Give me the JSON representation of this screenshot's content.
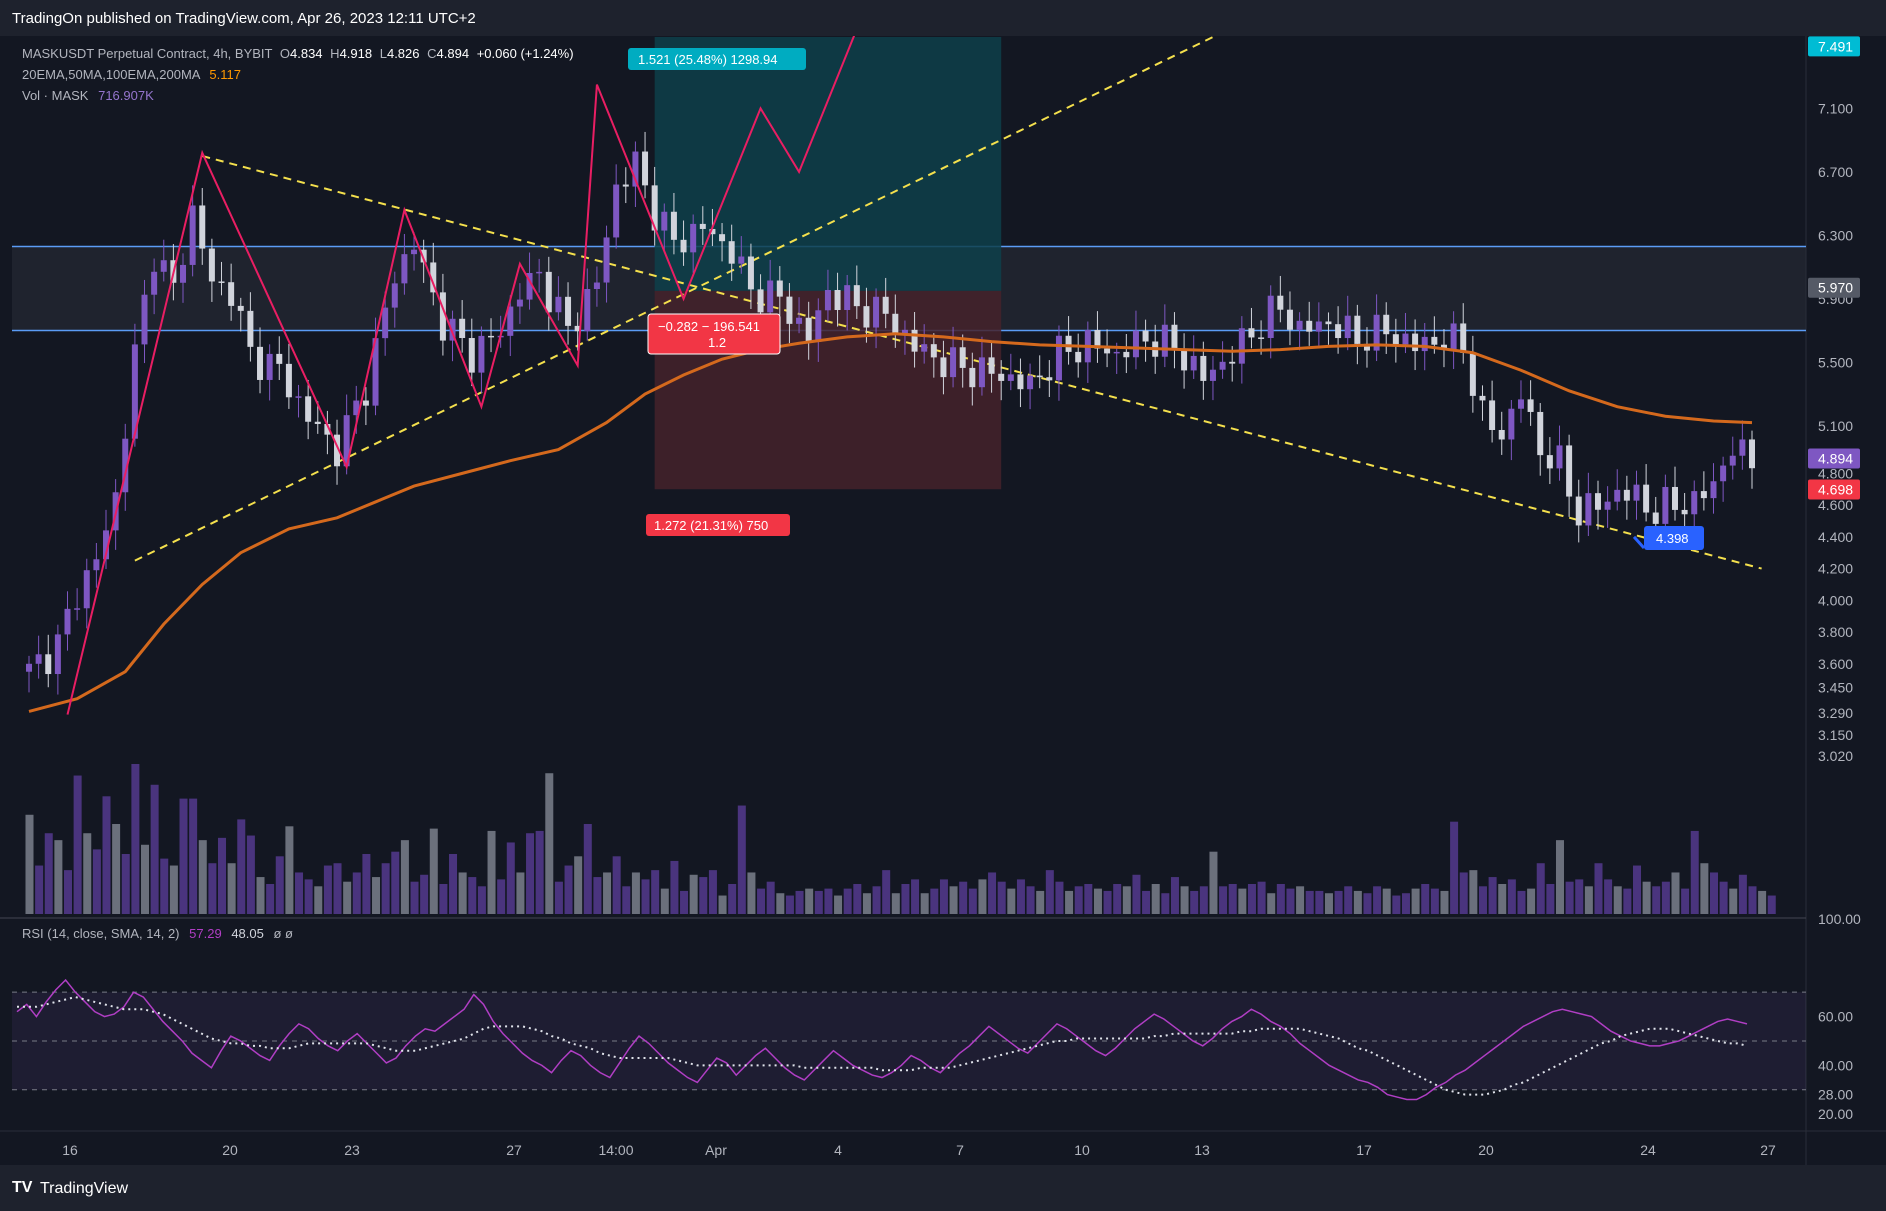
{
  "header": {
    "published": "TradingOn published on TradingView.com, Apr 26, 2023 12:11 UTC+2"
  },
  "footer": {
    "brand": "TradingView",
    "logo": "tradingview-logo-icon"
  },
  "legend": {
    "symbol": "MASKUSDT Perpetual Contract, 4h, BYBIT",
    "o_label": "O",
    "o": "4.834",
    "h_label": "H",
    "h": "4.918",
    "l_label": "L",
    "l": "4.826",
    "c_label": "C",
    "c": "4.894",
    "change": "+0.060 (+1.24%)",
    "ma_label": "20EMA,50MA,100EMA,200MA",
    "ma_value": "5.117",
    "vol_label": "Vol · MASK",
    "vol_value": "716.907K",
    "rsi_label": "RSI (14, close, SMA, 14, 2)",
    "rsi_value": "57.29",
    "rsi_ma": "48.05",
    "rsi_extra": "ø ø"
  },
  "colors": {
    "background": "#131722",
    "up": "#7e57c2",
    "down": "#d1d4dc",
    "ema": "#d4691d",
    "rsi": "#b03ec4",
    "zigzag": "#e91e63",
    "trend": "#f4e04d",
    "zone": "#5b9cf6",
    "target": "#0e3f4a",
    "stop": "#45222a"
  },
  "chart_data": [
    {
      "type": "candlestick",
      "title": "MASKUSDT Perpetual Contract, 4h, BYBIT",
      "price_scale": [
        "7.100",
        "6.700",
        "6.300",
        "5.900",
        "5.500",
        "5.100",
        "4.800",
        "4.600",
        "4.400",
        "4.200",
        "4.000",
        "3.800",
        "3.600",
        "3.450",
        "3.290",
        "3.150",
        "3.020"
      ],
      "x_ticks": [
        "16",
        "20",
        "23",
        "27",
        "14:00",
        "Apr",
        "4",
        "7",
        "10",
        "13",
        "17",
        "20",
        "24",
        "27"
      ],
      "ylim": [
        3.0,
        7.55
      ],
      "close_path": [
        {
          "x": 0,
          "y": 3.55
        },
        {
          "x": 3,
          "y": 3.72
        },
        {
          "x": 5,
          "y": 4.05
        },
        {
          "x": 7,
          "y": 4.25
        },
        {
          "x": 9,
          "y": 4.65
        },
        {
          "x": 11,
          "y": 5.55
        },
        {
          "x": 13,
          "y": 6.2
        },
        {
          "x": 15,
          "y": 5.95
        },
        {
          "x": 17,
          "y": 6.45
        },
        {
          "x": 19,
          "y": 6.0
        },
        {
          "x": 21,
          "y": 5.95
        },
        {
          "x": 23,
          "y": 5.55
        },
        {
          "x": 26,
          "y": 5.45
        },
        {
          "x": 29,
          "y": 5.15
        },
        {
          "x": 32,
          "y": 4.95
        },
        {
          "x": 35,
          "y": 5.35
        },
        {
          "x": 38,
          "y": 6.05
        },
        {
          "x": 40,
          "y": 6.25
        },
        {
          "x": 43,
          "y": 5.75
        },
        {
          "x": 46,
          "y": 5.55
        },
        {
          "x": 49,
          "y": 5.7
        },
        {
          "x": 51,
          "y": 5.95
        },
        {
          "x": 53,
          "y": 6.05
        },
        {
          "x": 56,
          "y": 5.7
        },
        {
          "x": 59,
          "y": 6.0
        },
        {
          "x": 61,
          "y": 6.6
        },
        {
          "x": 63,
          "y": 6.75
        },
        {
          "x": 65,
          "y": 6.45
        },
        {
          "x": 67,
          "y": 6.25
        },
        {
          "x": 70,
          "y": 6.35
        },
        {
          "x": 73,
          "y": 6.2
        },
        {
          "x": 75,
          "y": 5.95
        },
        {
          "x": 78,
          "y": 5.9
        },
        {
          "x": 81,
          "y": 5.65
        },
        {
          "x": 83,
          "y": 5.95
        },
        {
          "x": 86,
          "y": 5.85
        },
        {
          "x": 89,
          "y": 5.8
        },
        {
          "x": 92,
          "y": 5.6
        },
        {
          "x": 95,
          "y": 5.5
        },
        {
          "x": 98,
          "y": 5.45
        },
        {
          "x": 101,
          "y": 5.42
        },
        {
          "x": 104,
          "y": 5.35
        },
        {
          "x": 107,
          "y": 5.55
        },
        {
          "x": 110,
          "y": 5.62
        },
        {
          "x": 113,
          "y": 5.55
        },
        {
          "x": 116,
          "y": 5.65
        },
        {
          "x": 119,
          "y": 5.6
        },
        {
          "x": 122,
          "y": 5.4
        },
        {
          "x": 125,
          "y": 5.55
        },
        {
          "x": 128,
          "y": 5.75
        },
        {
          "x": 130,
          "y": 5.85
        },
        {
          "x": 132,
          "y": 5.7
        },
        {
          "x": 135,
          "y": 5.75
        },
        {
          "x": 138,
          "y": 5.65
        },
        {
          "x": 141,
          "y": 5.7
        },
        {
          "x": 144,
          "y": 5.6
        },
        {
          "x": 147,
          "y": 5.65
        },
        {
          "x": 149,
          "y": 5.6
        },
        {
          "x": 151,
          "y": 5.15
        },
        {
          "x": 153,
          "y": 5.05
        },
        {
          "x": 155,
          "y": 5.3
        },
        {
          "x": 157,
          "y": 4.95
        },
        {
          "x": 159,
          "y": 4.85
        },
        {
          "x": 161,
          "y": 4.55
        },
        {
          "x": 163,
          "y": 4.6
        },
        {
          "x": 165,
          "y": 4.68
        },
        {
          "x": 167,
          "y": 4.65
        },
        {
          "x": 169,
          "y": 4.55
        },
        {
          "x": 171,
          "y": 4.62
        },
        {
          "x": 173,
          "y": 4.6
        },
        {
          "x": 175,
          "y": 4.75
        },
        {
          "x": 177,
          "y": 4.95
        },
        {
          "x": 179,
          "y": 4.89
        }
      ],
      "ema_path": [
        {
          "x": 0,
          "y": 3.3
        },
        {
          "x": 5,
          "y": 3.38
        },
        {
          "x": 10,
          "y": 3.55
        },
        {
          "x": 14,
          "y": 3.85
        },
        {
          "x": 18,
          "y": 4.1
        },
        {
          "x": 22,
          "y": 4.3
        },
        {
          "x": 27,
          "y": 4.45
        },
        {
          "x": 32,
          "y": 4.52
        },
        {
          "x": 36,
          "y": 4.62
        },
        {
          "x": 40,
          "y": 4.72
        },
        {
          "x": 45,
          "y": 4.8
        },
        {
          "x": 50,
          "y": 4.88
        },
        {
          "x": 55,
          "y": 4.95
        },
        {
          "x": 60,
          "y": 5.12
        },
        {
          "x": 64,
          "y": 5.3
        },
        {
          "x": 68,
          "y": 5.42
        },
        {
          "x": 72,
          "y": 5.52
        },
        {
          "x": 76,
          "y": 5.58
        },
        {
          "x": 80,
          "y": 5.62
        },
        {
          "x": 85,
          "y": 5.66
        },
        {
          "x": 90,
          "y": 5.68
        },
        {
          "x": 95,
          "y": 5.66
        },
        {
          "x": 100,
          "y": 5.63
        },
        {
          "x": 105,
          "y": 5.61
        },
        {
          "x": 110,
          "y": 5.6
        },
        {
          "x": 115,
          "y": 5.59
        },
        {
          "x": 120,
          "y": 5.58
        },
        {
          "x": 125,
          "y": 5.57
        },
        {
          "x": 130,
          "y": 5.58
        },
        {
          "x": 135,
          "y": 5.6
        },
        {
          "x": 140,
          "y": 5.61
        },
        {
          "x": 145,
          "y": 5.6
        },
        {
          "x": 150,
          "y": 5.56
        },
        {
          "x": 155,
          "y": 5.45
        },
        {
          "x": 160,
          "y": 5.32
        },
        {
          "x": 165,
          "y": 5.22
        },
        {
          "x": 170,
          "y": 5.16
        },
        {
          "x": 175,
          "y": 5.13
        },
        {
          "x": 179,
          "y": 5.12
        }
      ],
      "zigzag": [
        {
          "x": 4,
          "y": 3.28
        },
        {
          "x": 18,
          "y": 6.82
        },
        {
          "x": 33,
          "y": 4.84
        },
        {
          "x": 39,
          "y": 6.46
        },
        {
          "x": 47,
          "y": 5.22
        },
        {
          "x": 51,
          "y": 6.12
        },
        {
          "x": 57,
          "y": 5.48
        },
        {
          "x": 59,
          "y": 7.25
        },
        {
          "x": 68,
          "y": 5.9
        },
        {
          "x": 76,
          "y": 7.1
        },
        {
          "x": 80,
          "y": 6.7
        },
        {
          "x": 86,
          "y": 7.6
        }
      ],
      "trendlines": [
        {
          "from": {
            "x": 11,
            "y": 4.25
          },
          "to": {
            "x": 123,
            "y": 7.55
          }
        },
        {
          "from": {
            "x": 18,
            "y": 6.8
          },
          "to": {
            "x": 180,
            "y": 4.2
          }
        }
      ],
      "zone": {
        "low": 5.7,
        "high": 6.23
      },
      "position": {
        "x0": 65,
        "x1": 101,
        "target": 7.55,
        "entry": 5.95,
        "stop": 4.7,
        "target_label": "1.521 (25.48%) 1298.94",
        "stop_label": "1.272 (21.31%) 750",
        "center_label_line1": "−0.282 − 196.541",
        "center_label_line2": "1.2"
      },
      "price_badges": [
        {
          "value": "7.491",
          "color": "#00bcd4"
        },
        {
          "value": "5.970",
          "color": "#555a66"
        },
        {
          "value": "4.894",
          "color": "#7e57c2"
        },
        {
          "value": "4.698",
          "color": "#f23645"
        }
      ],
      "note": {
        "label": "4.398",
        "x": 163,
        "y": 4.4
      }
    },
    {
      "type": "bar",
      "series": [
        {
          "name": "Vol · MASK",
          "values": [
            4.3,
            2.1,
            3.5,
            3.2,
            1.9,
            6.0,
            3.5,
            2.8,
            5.1,
            3.9,
            2.6,
            6.5,
            3.0,
            5.6,
            2.4,
            2.1,
            5.0,
            5.0,
            3.2,
            2.2,
            3.3,
            2.2,
            4.1,
            3.4,
            1.6,
            1.3,
            2.5,
            3.8,
            1.8,
            1.5,
            1.2,
            2.1,
            2.2,
            1.4,
            1.8,
            2.6,
            1.6,
            2.2,
            2.7,
            3.2,
            1.4,
            1.7,
            3.7,
            1.3,
            2.6,
            1.8,
            1.6,
            1.2,
            3.6,
            1.5,
            3.1,
            1.8,
            3.5,
            3.6,
            6.1,
            1.4,
            2.1,
            2.5,
            3.9,
            1.6,
            1.8,
            2.5,
            1.2,
            1.8,
            1.5,
            1.9,
            1.1,
            2.3,
            1.0,
            1.7,
            1.6,
            1.9,
            0.8,
            1.3,
            4.7,
            1.8,
            1.1,
            1.4,
            0.9,
            0.8,
            1.0,
            1.1,
            1.0,
            1.1,
            0.8,
            1.1,
            1.3,
            0.9,
            1.2,
            1.9,
            0.9,
            1.3,
            1.5,
            0.9,
            1.1,
            1.5,
            1.2,
            1.4,
            1.1,
            1.5,
            1.8,
            1.4,
            1.1,
            1.5,
            1.2,
            1.0,
            1.9,
            1.4,
            1.0,
            1.2,
            1.3,
            1.1,
            1.0,
            1.3,
            1.2,
            1.7,
            1.0,
            1.3,
            0.9,
            1.6,
            1.2,
            1.0,
            1.2,
            2.7,
            1.2,
            1.3,
            1.1,
            1.3,
            1.4,
            0.9,
            1.3,
            1.1,
            1.2,
            1.0,
            1.0,
            0.9,
            1.0,
            1.2,
            1.0,
            0.9,
            1.2,
            1.1,
            0.8,
            0.9,
            1.1,
            1.3,
            1.1,
            1.0,
            4.0,
            1.8,
            1.9,
            1.2,
            1.6,
            1.3,
            1.5,
            1.0,
            1.1,
            2.2,
            1.3,
            3.2,
            1.4,
            1.5,
            1.2,
            2.2,
            1.5,
            1.2,
            1.1,
            2.1,
            1.4,
            1.2,
            1.4,
            1.8,
            1.1,
            3.6,
            2.2,
            1.8,
            1.4,
            1.1,
            1.7,
            1.2,
            1.0,
            0.8
          ]
        }
      ]
    },
    {
      "type": "line",
      "title": "RSI (14, close, SMA, 14, 2)",
      "y_ticks": [
        "100.00",
        "60.00",
        "40.00",
        "28.00",
        "20.00"
      ],
      "bands": [
        30,
        50,
        70
      ],
      "ylim": [
        18,
        100
      ],
      "rsi": [
        62,
        65,
        60,
        66,
        71,
        75,
        70,
        66,
        62,
        60,
        61,
        64,
        70,
        68,
        63,
        58,
        54,
        50,
        45,
        42,
        39,
        46,
        52,
        50,
        47,
        44,
        42,
        48,
        53,
        57,
        55,
        51,
        48,
        46,
        50,
        53,
        49,
        45,
        41,
        43,
        48,
        52,
        55,
        54,
        57,
        60,
        63,
        69,
        65,
        58,
        53,
        49,
        45,
        42,
        40,
        37,
        42,
        46,
        44,
        40,
        37,
        35,
        41,
        47,
        52,
        49,
        45,
        41,
        38,
        35,
        33,
        38,
        43,
        41,
        36,
        40,
        44,
        47,
        43,
        39,
        36,
        34,
        38,
        42,
        46,
        43,
        40,
        38,
        36,
        35,
        37,
        40,
        44,
        42,
        39,
        37,
        41,
        45,
        48,
        52,
        56,
        53,
        50,
        47,
        45,
        49,
        53,
        57,
        55,
        52,
        49,
        46,
        44,
        47,
        51,
        55,
        58,
        61,
        59,
        56,
        53,
        50,
        48,
        51,
        55,
        58,
        60,
        63,
        61,
        58,
        56,
        53,
        49,
        46,
        43,
        40,
        38,
        36,
        34,
        33,
        31,
        28,
        27,
        26,
        26,
        28,
        31,
        33,
        36,
        38,
        41,
        44,
        47,
        50,
        53,
        56,
        58,
        60,
        62,
        63,
        62,
        61,
        60,
        57,
        54,
        52,
        50,
        49,
        48,
        48,
        49,
        50,
        52,
        54,
        56,
        58,
        59,
        58,
        57
      ],
      "rsi_ma": [
        64,
        64,
        64,
        65,
        66,
        67,
        68,
        67,
        66,
        65,
        64,
        63,
        63,
        63,
        62,
        61,
        59,
        57,
        55,
        53,
        51,
        50,
        49,
        49,
        48,
        48,
        47,
        47,
        47,
        48,
        49,
        49,
        49,
        49,
        49,
        49,
        49,
        48,
        47,
        46,
        46,
        46,
        47,
        48,
        49,
        50,
        51,
        53,
        55,
        56,
        56,
        56,
        56,
        55,
        54,
        52,
        51,
        49,
        48,
        47,
        45,
        44,
        43,
        43,
        43,
        43,
        43,
        43,
        42,
        41,
        40,
        40,
        40,
        40,
        40,
        40,
        40,
        40,
        40,
        40,
        40,
        39,
        39,
        39,
        39,
        39,
        39,
        39,
        39,
        38,
        38,
        38,
        38,
        39,
        39,
        39,
        39,
        40,
        41,
        42,
        43,
        44,
        45,
        46,
        47,
        48,
        49,
        50,
        50,
        51,
        51,
        51,
        51,
        51,
        51,
        51,
        51,
        52,
        52,
        53,
        53,
        53,
        53,
        53,
        53,
        53,
        54,
        54,
        55,
        55,
        55,
        55,
        55,
        54,
        53,
        52,
        51,
        49,
        47,
        46,
        44,
        42,
        40,
        38,
        36,
        34,
        32,
        30,
        29,
        28,
        28,
        28,
        29,
        30,
        32,
        33,
        35,
        37,
        39,
        41,
        43,
        45,
        47,
        49,
        50,
        52,
        53,
        54,
        55,
        55,
        55,
        54,
        53,
        52,
        51,
        50,
        49,
        49,
        48
      ]
    }
  ]
}
